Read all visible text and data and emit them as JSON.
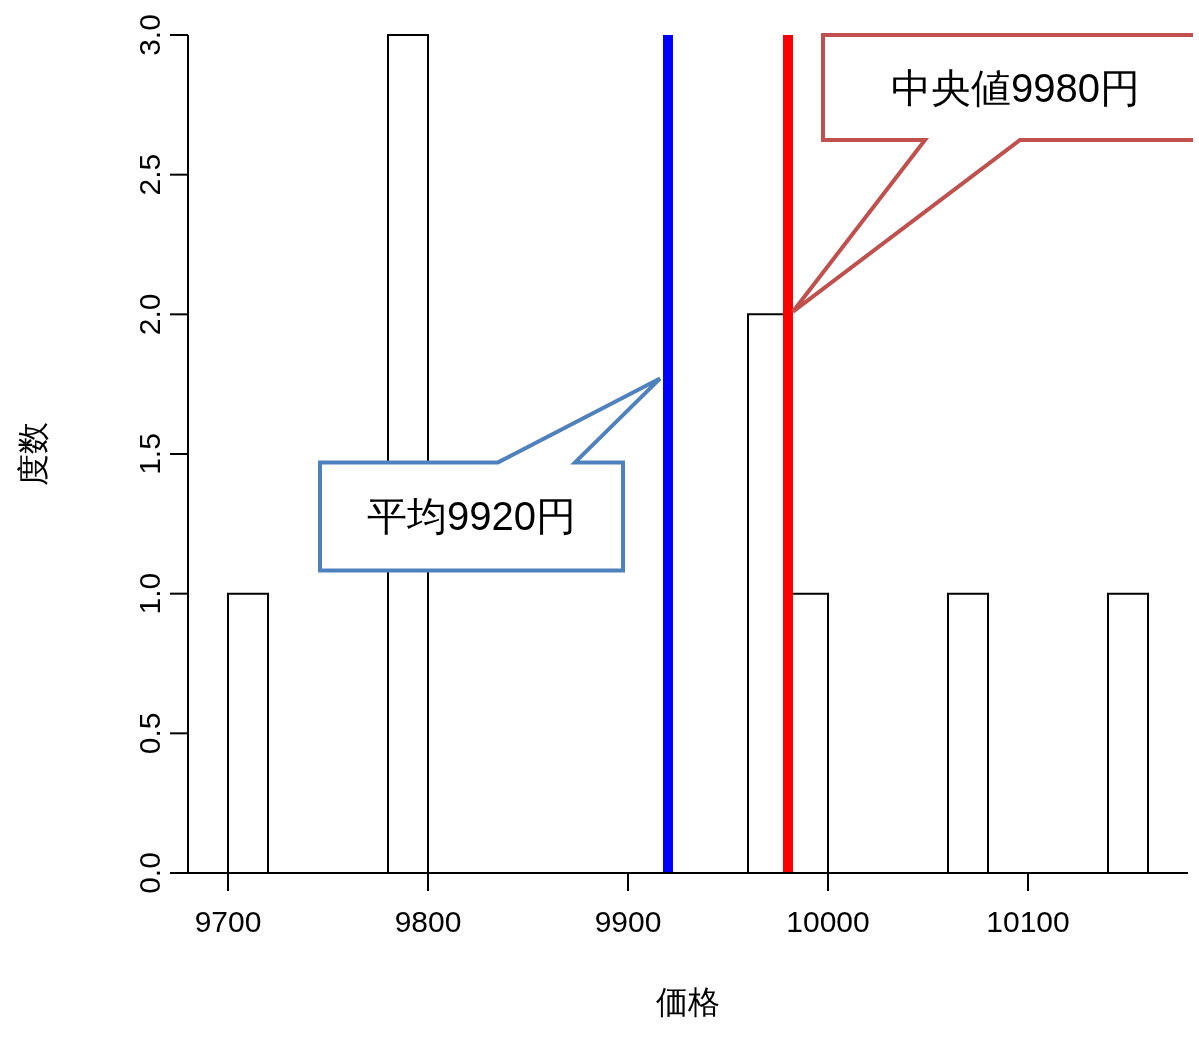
{
  "chart_data": {
    "type": "histogram",
    "xlabel": "価格",
    "ylabel": "度数",
    "bins": [
      9700,
      9720,
      9740,
      9760,
      9780,
      9800,
      9820,
      9840,
      9860,
      9880,
      9900,
      9920,
      9940,
      9960,
      9980,
      10000,
      10020,
      10040,
      10060,
      10080,
      10100,
      10120,
      10140,
      10160
    ],
    "values": [
      1,
      0,
      0,
      0,
      3,
      0,
      0,
      0,
      0,
      0,
      0,
      0,
      0,
      2,
      1,
      0,
      0,
      0,
      1,
      0,
      0,
      0,
      1
    ],
    "color": "#ffffff",
    "xlim": [
      9680,
      10180
    ],
    "xticks": [
      9700,
      9800,
      9900,
      10000,
      10100
    ],
    "ylim": [
      0,
      3
    ],
    "yticks": [
      {
        "value": 0,
        "label": "0.0"
      },
      {
        "value": 0.5,
        "label": "0.5"
      },
      {
        "value": 1,
        "label": "1.0"
      },
      {
        "value": 1.5,
        "label": "1.5"
      },
      {
        "value": 2,
        "label": "2.0"
      },
      {
        "value": 2.5,
        "label": "2.5"
      },
      {
        "value": 3,
        "label": "3.0"
      }
    ],
    "ref_lines": [
      {
        "axis": "x",
        "value": 9920,
        "label": "平均9920円",
        "color": "#0000ff"
      },
      {
        "axis": "x",
        "value": 9980,
        "label": "中央値9980円",
        "color": "#ff0000"
      }
    ]
  }
}
